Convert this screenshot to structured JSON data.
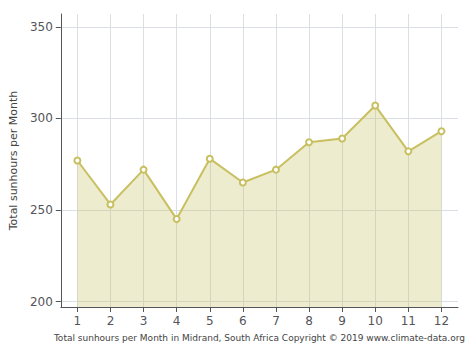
{
  "chart_data": {
    "type": "line",
    "xlabel": "Total sunhours per Month in Midrand, South Africa Copyright © 2019 www.climate-data.org",
    "ylabel": "Total sunhours per Month",
    "x": [
      1,
      2,
      3,
      4,
      5,
      6,
      7,
      8,
      9,
      10,
      11,
      12
    ],
    "values": [
      277,
      253,
      272,
      245,
      278,
      265,
      272,
      287,
      289,
      307,
      282,
      293
    ],
    "color": "#c8c060",
    "marker": "circle",
    "xlim": [
      0.5,
      12.5
    ],
    "xticks": [
      1,
      2,
      3,
      4,
      5,
      6,
      7,
      8,
      9,
      10,
      11,
      12
    ],
    "ylim": [
      197,
      357
    ],
    "yticks": [
      200,
      250,
      300,
      350
    ],
    "grid": true
  }
}
